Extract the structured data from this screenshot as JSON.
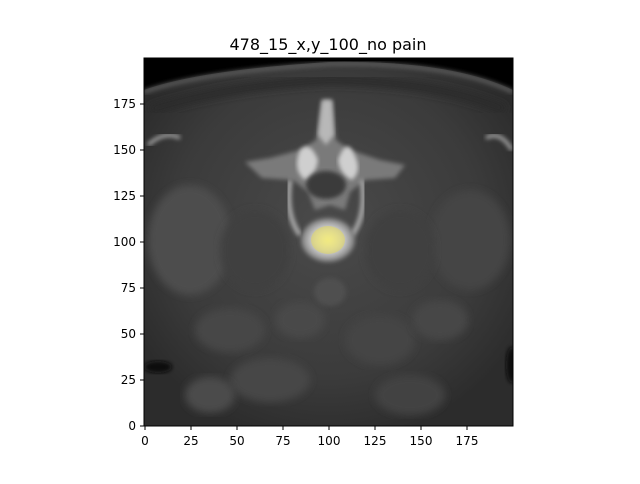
{
  "title": "478_15_x,y_100_no pain",
  "axes": {
    "x_ticks": [
      "0",
      "25",
      "50",
      "75",
      "100",
      "125",
      "150",
      "175"
    ],
    "y_ticks": [
      "0",
      "25",
      "50",
      "75",
      "100",
      "125",
      "150",
      "175"
    ]
  },
  "image": {
    "subject": "axial CT slice of lumbar vertebra",
    "overlay_color": "#f2e85c",
    "background_color": "#000000",
    "tissue_color": "#3a3a3a"
  }
}
